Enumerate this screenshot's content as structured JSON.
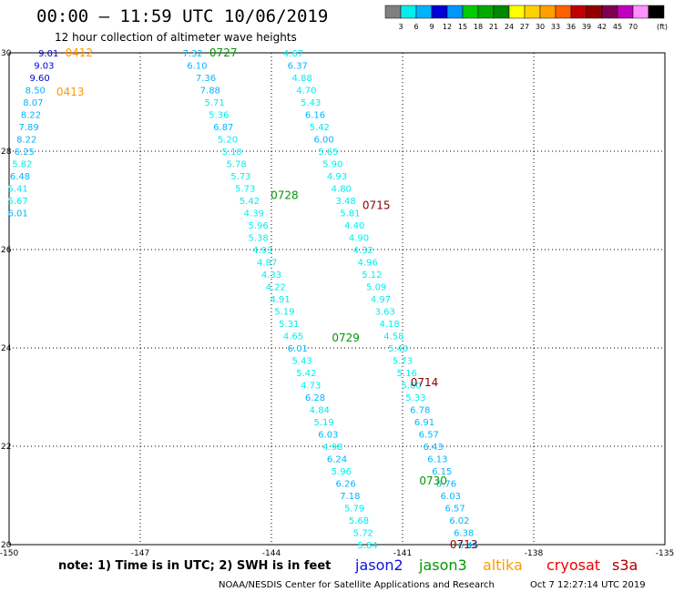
{
  "header": {
    "title": "00:00 – 11:59 UTC 10/06/2019",
    "subtitle": "12 hour collection of altimeter wave heights"
  },
  "legend": {
    "colors": [
      "#808080",
      "#00eeee",
      "#00b4ff",
      "#0000d8",
      "#0096ff",
      "#00cc00",
      "#00aa00",
      "#008800",
      "#ffff00",
      "#ffd000",
      "#ffa000",
      "#ff6000",
      "#c00000",
      "#900000",
      "#800050",
      "#c000c0",
      "#ff90ff",
      "#000000"
    ],
    "labels": [
      "3",
      "6",
      "9",
      "12",
      "15",
      "18",
      "21",
      "24",
      "27",
      "30",
      "33",
      "36",
      "39",
      "42",
      "45",
      "70"
    ],
    "unit": "(ft)"
  },
  "footer": {
    "note": "note: 1) Time is in UTC; 2) SWH is in feet",
    "credit": "NOAA/NESDIS Center for Satellite Applications and Research",
    "timestamp": "Oct 7 12:27:14 UTC 2019",
    "satellites": [
      {
        "name": "jason2",
        "color": "#1010e0"
      },
      {
        "name": "jason3",
        "color": "#009900"
      },
      {
        "name": "altika",
        "color": "#ff9900"
      },
      {
        "name": "cryosat",
        "color": "#ee0000"
      },
      {
        "name": "s3a",
        "color": "#aa0000"
      }
    ]
  },
  "chart_data": {
    "type": "scatter",
    "xlabel": "",
    "ylabel": "",
    "xlim": [
      -150,
      -135
    ],
    "ylim": [
      20,
      30
    ],
    "grid": true,
    "x_ticks": [
      "-150",
      "-147",
      "-144",
      "-141",
      "-138",
      "-135"
    ],
    "y_ticks": [
      "20",
      "22",
      "24",
      "26",
      "28",
      "30"
    ],
    "track_labels": [
      {
        "text": "0412",
        "lon": -148.4,
        "lat": 30.0,
        "color": "#ff9900"
      },
      {
        "text": "0413",
        "lon": -148.6,
        "lat": 29.2,
        "color": "#ff9900"
      },
      {
        "text": "0727",
        "lon": -145.1,
        "lat": 30.0,
        "color": "#009900"
      },
      {
        "text": "0728",
        "lon": -143.7,
        "lat": 27.1,
        "color": "#009900"
      },
      {
        "text": "0715",
        "lon": -141.6,
        "lat": 26.9,
        "color": "#880000"
      },
      {
        "text": "0729",
        "lon": -142.3,
        "lat": 24.2,
        "color": "#009900"
      },
      {
        "text": "0714",
        "lon": -140.5,
        "lat": 23.3,
        "color": "#880000"
      },
      {
        "text": "0730",
        "lon": -140.3,
        "lat": 21.3,
        "color": "#009900"
      },
      {
        "text": "0713",
        "lon": -139.6,
        "lat": 20.0,
        "color": "#880000"
      }
    ],
    "series": [
      {
        "points": [
          {
            "lon": -149.1,
            "lat": 30.0,
            "swh": "9.01"
          },
          {
            "lon": -149.2,
            "lat": 29.75,
            "swh": "9.03"
          },
          {
            "lon": -149.3,
            "lat": 29.5,
            "swh": "9.60"
          },
          {
            "lon": -149.4,
            "lat": 29.25,
            "swh": "8.50"
          },
          {
            "lon": -149.45,
            "lat": 29.0,
            "swh": "8.07"
          },
          {
            "lon": -149.5,
            "lat": 28.75,
            "swh": "8.22"
          },
          {
            "lon": -149.55,
            "lat": 28.5,
            "swh": "7.89"
          },
          {
            "lon": -149.6,
            "lat": 28.25,
            "swh": "8.22"
          },
          {
            "lon": -149.65,
            "lat": 28.0,
            "swh": "6.25"
          },
          {
            "lon": -149.7,
            "lat": 27.75,
            "swh": "5.82"
          },
          {
            "lon": -149.75,
            "lat": 27.5,
            "swh": "6.48"
          },
          {
            "lon": -149.8,
            "lat": 27.25,
            "swh": "5.41"
          },
          {
            "lon": -149.8,
            "lat": 27.0,
            "swh": "5.67"
          },
          {
            "lon": -149.8,
            "lat": 26.75,
            "swh": "6.01"
          }
        ]
      },
      {
        "points": [
          {
            "lon": -145.8,
            "lat": 30.0,
            "swh": "7.32"
          },
          {
            "lon": -145.7,
            "lat": 29.75,
            "swh": "6.10"
          },
          {
            "lon": -145.5,
            "lat": 29.5,
            "swh": "7.36"
          },
          {
            "lon": -145.4,
            "lat": 29.25,
            "swh": "7.88"
          },
          {
            "lon": -145.3,
            "lat": 29.0,
            "swh": "5.71"
          },
          {
            "lon": -145.2,
            "lat": 28.75,
            "swh": "5.36"
          },
          {
            "lon": -145.1,
            "lat": 28.5,
            "swh": "6.87"
          },
          {
            "lon": -145.0,
            "lat": 28.25,
            "swh": "5.20"
          },
          {
            "lon": -144.9,
            "lat": 28.0,
            "swh": "5.10"
          },
          {
            "lon": -144.8,
            "lat": 27.75,
            "swh": "5.78"
          },
          {
            "lon": -144.7,
            "lat": 27.5,
            "swh": "5.73"
          },
          {
            "lon": -144.6,
            "lat": 27.25,
            "swh": "5.73"
          },
          {
            "lon": -144.5,
            "lat": 27.0,
            "swh": "5.42"
          },
          {
            "lon": -144.4,
            "lat": 26.75,
            "swh": "4.39"
          },
          {
            "lon": -144.3,
            "lat": 26.5,
            "swh": "5.96"
          },
          {
            "lon": -144.3,
            "lat": 26.25,
            "swh": "5.38"
          },
          {
            "lon": -144.2,
            "lat": 26.0,
            "swh": "4.93"
          },
          {
            "lon": -144.1,
            "lat": 25.75,
            "swh": "4.87"
          },
          {
            "lon": -144.0,
            "lat": 25.5,
            "swh": "4.33"
          },
          {
            "lon": -143.9,
            "lat": 25.25,
            "swh": "4.22"
          },
          {
            "lon": -143.8,
            "lat": 25.0,
            "swh": "4.91"
          },
          {
            "lon": -143.7,
            "lat": 24.75,
            "swh": "5.19"
          },
          {
            "lon": -143.6,
            "lat": 24.5,
            "swh": "5.31"
          },
          {
            "lon": -143.5,
            "lat": 24.25,
            "swh": "4.65"
          },
          {
            "lon": -143.4,
            "lat": 24.0,
            "swh": "6.01"
          },
          {
            "lon": -143.3,
            "lat": 23.75,
            "swh": "5.43"
          },
          {
            "lon": -143.2,
            "lat": 23.5,
            "swh": "5.42"
          },
          {
            "lon": -143.1,
            "lat": 23.25,
            "swh": "4.73"
          },
          {
            "lon": -143.0,
            "lat": 23.0,
            "swh": "6.28"
          },
          {
            "lon": -142.9,
            "lat": 22.75,
            "swh": "4.84"
          },
          {
            "lon": -142.8,
            "lat": 22.5,
            "swh": "5.19"
          },
          {
            "lon": -142.7,
            "lat": 22.25,
            "swh": "6.03"
          },
          {
            "lon": -142.6,
            "lat": 22.0,
            "swh": "4.98"
          },
          {
            "lon": -142.5,
            "lat": 21.75,
            "swh": "6.24"
          },
          {
            "lon": -142.4,
            "lat": 21.5,
            "swh": "5.96"
          },
          {
            "lon": -142.3,
            "lat": 21.25,
            "swh": "6.26"
          },
          {
            "lon": -142.2,
            "lat": 21.0,
            "swh": "7.18"
          },
          {
            "lon": -142.1,
            "lat": 20.75,
            "swh": "5.79"
          },
          {
            "lon": -142.0,
            "lat": 20.5,
            "swh": "5.68"
          },
          {
            "lon": -141.9,
            "lat": 20.25,
            "swh": "5.72"
          },
          {
            "lon": -141.8,
            "lat": 20.0,
            "swh": "5.84"
          }
        ]
      },
      {
        "points": [
          {
            "lon": -143.5,
            "lat": 30.0,
            "swh": "4.67"
          },
          {
            "lon": -143.4,
            "lat": 29.75,
            "swh": "6.37"
          },
          {
            "lon": -143.3,
            "lat": 29.5,
            "swh": "4.88"
          },
          {
            "lon": -143.2,
            "lat": 29.25,
            "swh": "4.70"
          },
          {
            "lon": -143.1,
            "lat": 29.0,
            "swh": "5.43"
          },
          {
            "lon": -143.0,
            "lat": 28.75,
            "swh": "6.16"
          },
          {
            "lon": -142.9,
            "lat": 28.5,
            "swh": "5.42"
          },
          {
            "lon": -142.8,
            "lat": 28.25,
            "swh": "6.00"
          },
          {
            "lon": -142.7,
            "lat": 28.0,
            "swh": "5.65"
          },
          {
            "lon": -142.6,
            "lat": 27.75,
            "swh": "5.90"
          },
          {
            "lon": -142.5,
            "lat": 27.5,
            "swh": "4.93"
          },
          {
            "lon": -142.4,
            "lat": 27.25,
            "swh": "4.80"
          },
          {
            "lon": -142.3,
            "lat": 27.0,
            "swh": "3.48"
          },
          {
            "lon": -142.2,
            "lat": 26.75,
            "swh": "5.81"
          },
          {
            "lon": -142.1,
            "lat": 26.5,
            "swh": "4.40"
          },
          {
            "lon": -142.0,
            "lat": 26.25,
            "swh": "4.90"
          },
          {
            "lon": -141.9,
            "lat": 26.0,
            "swh": "4.32"
          },
          {
            "lon": -141.8,
            "lat": 25.75,
            "swh": "4.96"
          },
          {
            "lon": -141.7,
            "lat": 25.5,
            "swh": "5.12"
          },
          {
            "lon": -141.6,
            "lat": 25.25,
            "swh": "5.09"
          },
          {
            "lon": -141.5,
            "lat": 25.0,
            "swh": "4.97"
          },
          {
            "lon": -141.4,
            "lat": 24.75,
            "swh": "3.63"
          },
          {
            "lon": -141.3,
            "lat": 24.5,
            "swh": "4.18"
          },
          {
            "lon": -141.2,
            "lat": 24.25,
            "swh": "4.58"
          },
          {
            "lon": -141.1,
            "lat": 24.0,
            "swh": "5.40"
          },
          {
            "lon": -141.0,
            "lat": 23.75,
            "swh": "5.73"
          },
          {
            "lon": -140.9,
            "lat": 23.5,
            "swh": "5.16"
          },
          {
            "lon": -140.8,
            "lat": 23.25,
            "swh": "5.60"
          },
          {
            "lon": -140.7,
            "lat": 23.0,
            "swh": "5.33"
          },
          {
            "lon": -140.6,
            "lat": 22.75,
            "swh": "6.78"
          },
          {
            "lon": -140.5,
            "lat": 22.5,
            "swh": "6.91"
          },
          {
            "lon": -140.4,
            "lat": 22.25,
            "swh": "6.57"
          },
          {
            "lon": -140.3,
            "lat": 22.0,
            "swh": "6.43"
          },
          {
            "lon": -140.2,
            "lat": 21.75,
            "swh": "6.13"
          },
          {
            "lon": -140.1,
            "lat": 21.5,
            "swh": "6.15"
          },
          {
            "lon": -140.0,
            "lat": 21.25,
            "swh": "6.76"
          },
          {
            "lon": -139.9,
            "lat": 21.0,
            "swh": "6.03"
          },
          {
            "lon": -139.8,
            "lat": 20.75,
            "swh": "6.57"
          },
          {
            "lon": -139.7,
            "lat": 20.5,
            "swh": "6.02"
          },
          {
            "lon": -139.6,
            "lat": 20.25,
            "swh": "6.38"
          },
          {
            "lon": -139.5,
            "lat": 20.0,
            "swh": "6.46"
          }
        ]
      }
    ]
  }
}
